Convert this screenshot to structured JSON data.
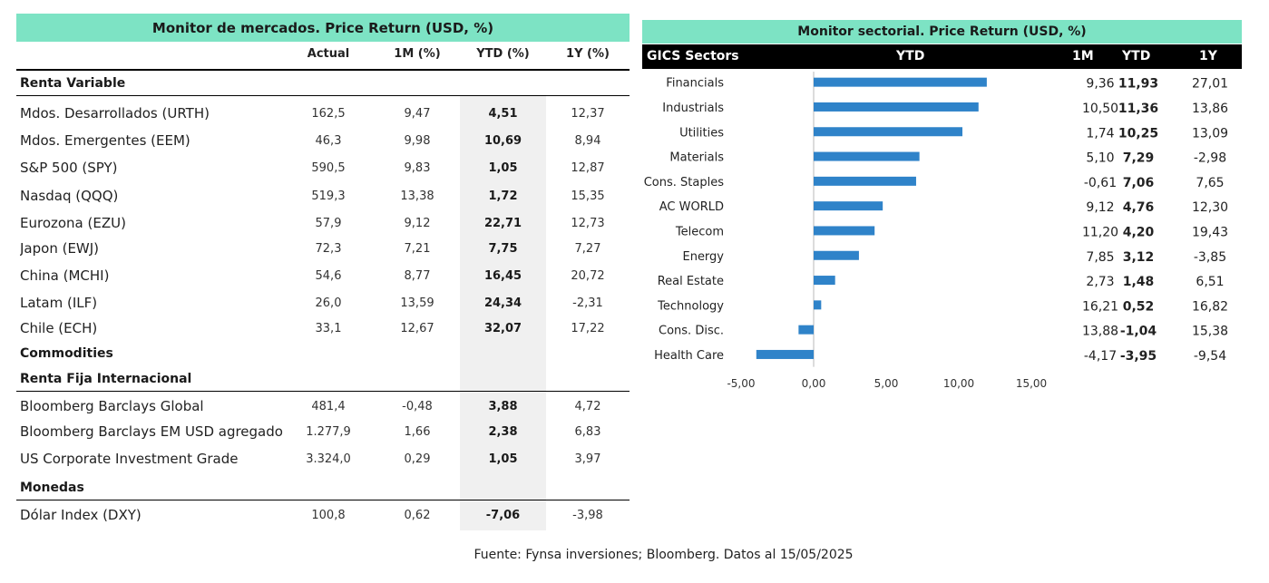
{
  "colors": {
    "banner_bg": "#7de3c4",
    "bar": "#2f83c9",
    "ytd_shade": "#f0f0f0",
    "header_bg": "#000000"
  },
  "market_monitor": {
    "title": "Monitor de mercados. Price Return (USD, %)",
    "columns": [
      "Actual",
      "1M (%)",
      "YTD (%)",
      "1Y (%)"
    ],
    "sections": [
      {
        "title": "Renta Variable",
        "rows": [
          {
            "name": "Mdos. Desarrollados (URTH)",
            "actual": "162,5",
            "m1": "9,47",
            "ytd": "4,51",
            "y1": "12,37"
          },
          {
            "name": "Mdos. Emergentes (EEM)",
            "actual": "46,3",
            "m1": "9,98",
            "ytd": "10,69",
            "y1": "8,94"
          },
          {
            "name": "S&P 500 (SPY)",
            "actual": "590,5",
            "m1": "9,83",
            "ytd": "1,05",
            "y1": "12,87"
          },
          {
            "name": "Nasdaq (QQQ)",
            "actual": "519,3",
            "m1": "13,38",
            "ytd": "1,72",
            "y1": "15,35"
          },
          {
            "name": "Eurozona (EZU)",
            "actual": "57,9",
            "m1": "9,12",
            "ytd": "22,71",
            "y1": "12,73"
          },
          {
            "name": "Japon (EWJ)",
            "actual": "72,3",
            "m1": "7,21",
            "ytd": "7,75",
            "y1": "7,27"
          },
          {
            "name": "China (MCHI)",
            "actual": "54,6",
            "m1": "8,77",
            "ytd": "16,45",
            "y1": "20,72"
          },
          {
            "name": "Latam (ILF)",
            "actual": "26,0",
            "m1": "13,59",
            "ytd": "24,34",
            "y1": "-2,31"
          },
          {
            "name": "Chile (ECH)",
            "actual": "33,1",
            "m1": "12,67",
            "ytd": "32,07",
            "y1": "17,22"
          }
        ]
      },
      {
        "title": "Commodities",
        "rows": []
      },
      {
        "title": "Renta Fija Internacional",
        "rows": [
          {
            "name": "Bloomberg Barclays Global",
            "actual": "481,4",
            "m1": "-0,48",
            "ytd": "3,88",
            "y1": "4,72"
          },
          {
            "name": "Bloomberg Barclays EM USD agregado",
            "actual": "1.277,9",
            "m1": "1,66",
            "ytd": "2,38",
            "y1": "6,83"
          },
          {
            "name": "US Corporate Investment Grade",
            "actual": "3.324,0",
            "m1": "0,29",
            "ytd": "1,05",
            "y1": "3,97"
          }
        ]
      },
      {
        "title": "Monedas",
        "rows": [
          {
            "name": "Dólar Index (DXY)",
            "actual": "100,8",
            "m1": "0,62",
            "ytd": "-7,06",
            "y1": "-3,98"
          }
        ]
      }
    ]
  },
  "sector_monitor": {
    "title": "Monitor sectorial. Price Return (USD, %)",
    "header": {
      "sectors": "GICS Sectors",
      "ytd": "YTD",
      "m1": "1M",
      "ytd2": "YTD",
      "y1": "1Y"
    },
    "table": [
      {
        "m1": "9,36",
        "ytd": "11,93",
        "y1": "27,01"
      },
      {
        "m1": "10,50",
        "ytd": "11,36",
        "y1": "13,86"
      },
      {
        "m1": "1,74",
        "ytd": "10,25",
        "y1": "13,09"
      },
      {
        "m1": "5,10",
        "ytd": "7,29",
        "y1": "-2,98"
      },
      {
        "m1": "-0,61",
        "ytd": "7,06",
        "y1": "7,65"
      },
      {
        "m1": "9,12",
        "ytd": "4,76",
        "y1": "12,30"
      },
      {
        "m1": "11,20",
        "ytd": "4,20",
        "y1": "19,43"
      },
      {
        "m1": "7,85",
        "ytd": "3,12",
        "y1": "-3,85"
      },
      {
        "m1": "2,73",
        "ytd": "1,48",
        "y1": "6,51"
      },
      {
        "m1": "16,21",
        "ytd": "0,52",
        "y1": "16,82"
      },
      {
        "m1": "13,88",
        "ytd": "-1,04",
        "y1": "15,38"
      },
      {
        "m1": "-4,17",
        "ytd": "-3,95",
        "y1": "-9,54"
      }
    ]
  },
  "chart_data": {
    "type": "bar",
    "orientation": "horizontal",
    "categories": [
      "Financials",
      "Industrials",
      "Utilities",
      "Materials",
      "Cons. Staples",
      "AC WORLD",
      "Telecom",
      "Energy",
      "Real Estate",
      "Technology",
      "Cons. Disc.",
      "Health Care"
    ],
    "values": [
      11.93,
      11.36,
      10.25,
      7.29,
      7.06,
      4.76,
      4.2,
      3.12,
      1.48,
      0.52,
      -1.04,
      -3.95
    ],
    "xlim": [
      -5,
      15
    ],
    "ticks": [
      -5,
      0,
      5,
      10,
      15
    ],
    "tick_labels": [
      "-5,00",
      "0,00",
      "5,00",
      "10,00",
      "15,00"
    ],
    "grid": false
  },
  "footer": "Fuente: Fynsa inversiones; Bloomberg. Datos al 15/05/2025"
}
